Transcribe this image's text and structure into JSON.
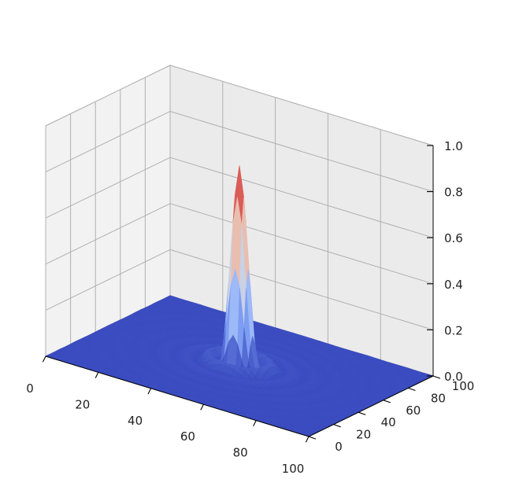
{
  "chart_data": {
    "type": "surface3d",
    "title": "",
    "xlabel": "",
    "ylabel": "",
    "zlabel": "",
    "colormap": "coolwarm",
    "grid": true,
    "xlim": [
      0,
      100
    ],
    "ylim": [
      0,
      100
    ],
    "zlim": [
      0,
      1.0
    ],
    "x_ticks": [
      "0",
      "20",
      "40",
      "60",
      "80",
      "100"
    ],
    "y_ticks": [
      "0",
      "20",
      "40",
      "60",
      "80",
      "100"
    ],
    "z_ticks": [
      "0.0",
      "0.2",
      "0.4",
      "0.6",
      "0.8",
      "1.0"
    ],
    "peak": {
      "x": 50,
      "y": 50,
      "z": 0.87
    },
    "pane_color": "#f2f2f2",
    "grid_color": "#b0b0b0"
  }
}
